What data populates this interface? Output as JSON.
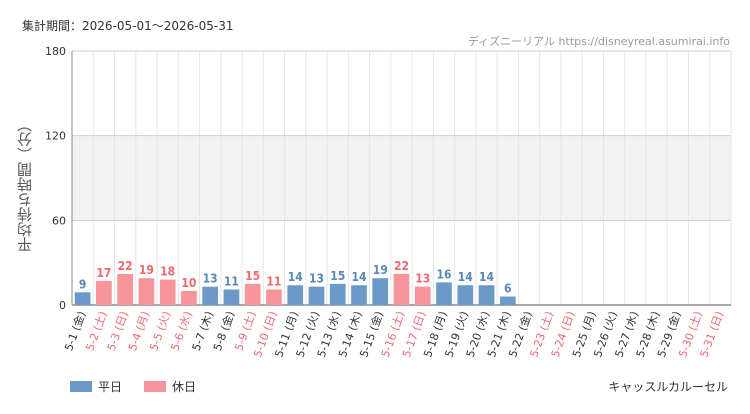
{
  "header": {
    "period": "集計期間：2026-05-01〜2026-05-31",
    "source": "ディズニーリアル https://disneyreal.asumirai.info"
  },
  "footer": {
    "attraction": "キャッスルカルーセル"
  },
  "colors": {
    "weekday": "#6b9ac8",
    "holiday": "#f7969a",
    "weekday_text": "#5a88b8",
    "holiday_text": "#ee6a70",
    "band": "#f2f2f2",
    "grid": "#e6e6e6"
  },
  "chart_data": {
    "type": "bar",
    "ylabel": "平均待ち時間（分）",
    "ylim": [
      0,
      180
    ],
    "yticks": [
      0,
      60,
      120,
      180
    ],
    "grid": true,
    "legend_position": "bottom-left",
    "legend": [
      {
        "key": "weekday",
        "label": "平日"
      },
      {
        "key": "holiday",
        "label": "休日"
      }
    ],
    "categories": [
      "5-1 (金)",
      "5-2 (土)",
      "5-3 (日)",
      "5-4 (月)",
      "5-5 (火)",
      "5-6 (水)",
      "5-7 (木)",
      "5-8 (金)",
      "5-9 (土)",
      "5-10 (日)",
      "5-11 (月)",
      "5-12 (火)",
      "5-13 (水)",
      "5-14 (木)",
      "5-15 (金)",
      "5-16 (土)",
      "5-17 (日)",
      "5-18 (月)",
      "5-19 (火)",
      "5-20 (水)",
      "5-21 (木)",
      "5-22 (金)",
      "5-23 (土)",
      "5-24 (日)",
      "5-25 (月)",
      "5-26 (火)",
      "5-27 (水)",
      "5-28 (木)",
      "5-29 (金)",
      "5-30 (土)",
      "5-31 (日)"
    ],
    "values": [
      9,
      17,
      22,
      19,
      18,
      10,
      13,
      11,
      15,
      11,
      14,
      13,
      15,
      14,
      19,
      22,
      13,
      16,
      14,
      14,
      6,
      null,
      null,
      null,
      null,
      null,
      null,
      null,
      null,
      null,
      null
    ],
    "day_types": [
      "weekday",
      "holiday",
      "holiday",
      "holiday",
      "holiday",
      "holiday",
      "weekday",
      "weekday",
      "holiday",
      "holiday",
      "weekday",
      "weekday",
      "weekday",
      "weekday",
      "weekday",
      "holiday",
      "holiday",
      "weekday",
      "weekday",
      "weekday",
      "weekday",
      "weekday",
      "holiday",
      "holiday",
      "weekday",
      "weekday",
      "weekday",
      "weekday",
      "weekday",
      "holiday",
      "holiday"
    ]
  }
}
